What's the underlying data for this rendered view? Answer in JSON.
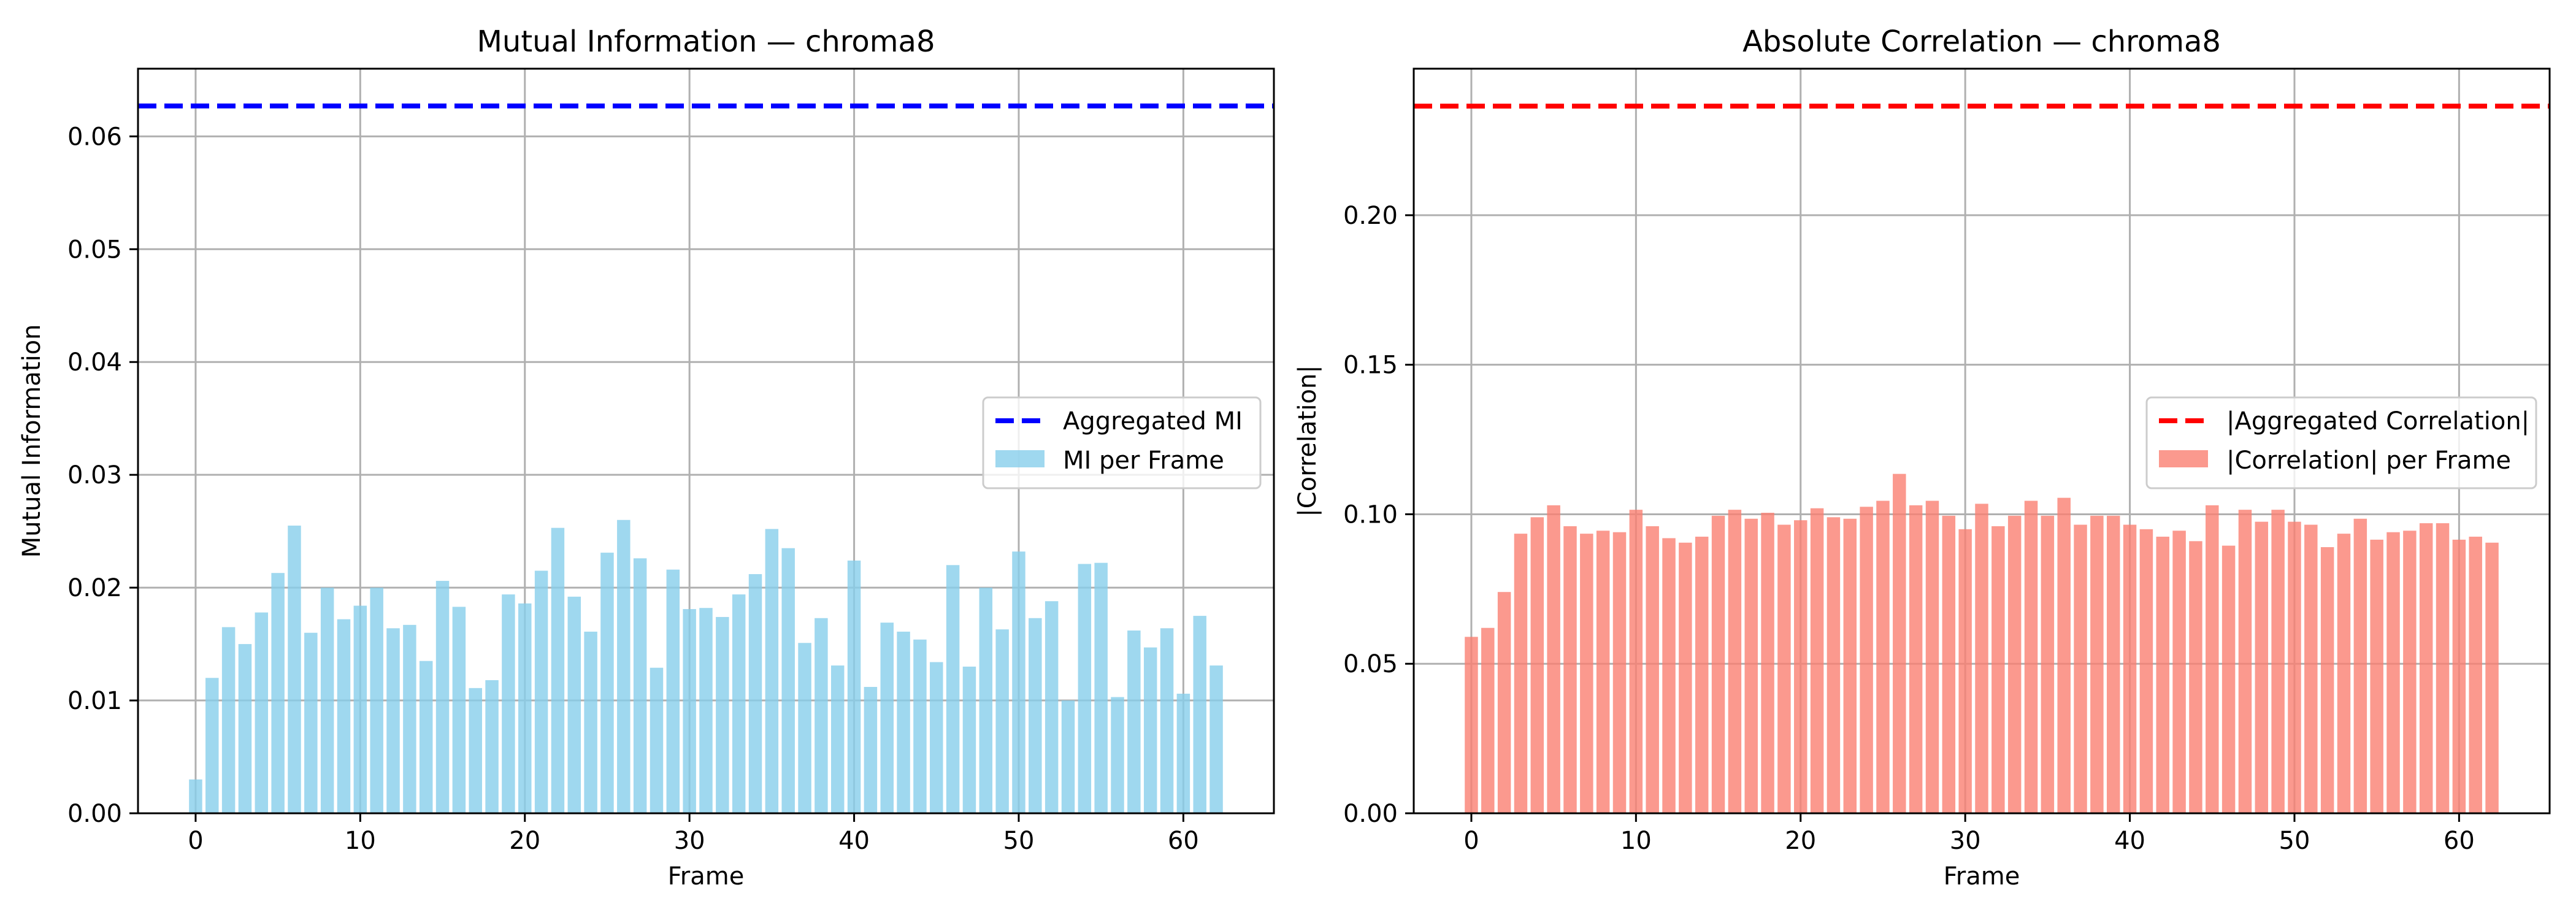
{
  "chart_data": [
    {
      "type": "bar",
      "title": "Mutual Information — chroma8",
      "xlabel": "Frame",
      "ylabel": "Mutual Information",
      "xlim": [
        -3.5,
        65.5
      ],
      "ylim": [
        0,
        0.066
      ],
      "xticks": [
        0,
        10,
        20,
        30,
        40,
        50,
        60
      ],
      "yticks": [
        0.0,
        0.01,
        0.02,
        0.03,
        0.04,
        0.05,
        0.06
      ],
      "ytick_labels": [
        "0.00",
        "0.01",
        "0.02",
        "0.03",
        "0.04",
        "0.05",
        "0.06"
      ],
      "grid": true,
      "legend_position": "center-right",
      "bar_color": "#87ceeb",
      "line_color": "#0000ff",
      "series": [
        {
          "name": "MI per Frame",
          "kind": "bar",
          "x": [
            0,
            1,
            2,
            3,
            4,
            5,
            6,
            7,
            8,
            9,
            10,
            11,
            12,
            13,
            14,
            15,
            16,
            17,
            18,
            19,
            20,
            21,
            22,
            23,
            24,
            25,
            26,
            27,
            28,
            29,
            30,
            31,
            32,
            33,
            34,
            35,
            36,
            37,
            38,
            39,
            40,
            41,
            42,
            43,
            44,
            45,
            46,
            47,
            48,
            49,
            50,
            51,
            52,
            53,
            54,
            55,
            56,
            57,
            58,
            59,
            60,
            61,
            62
          ],
          "values": [
            0.003,
            0.012,
            0.0165,
            0.015,
            0.0178,
            0.0213,
            0.0255,
            0.016,
            0.02,
            0.0172,
            0.0184,
            0.02,
            0.0164,
            0.0167,
            0.0135,
            0.0206,
            0.0183,
            0.0111,
            0.0118,
            0.0194,
            0.0186,
            0.0215,
            0.0253,
            0.0192,
            0.0161,
            0.0231,
            0.026,
            0.0226,
            0.0129,
            0.0216,
            0.0181,
            0.0182,
            0.0174,
            0.0194,
            0.0212,
            0.0252,
            0.0235,
            0.0151,
            0.0173,
            0.0131,
            0.0224,
            0.0112,
            0.0169,
            0.0161,
            0.0154,
            0.0134,
            0.022,
            0.013,
            0.02,
            0.0163,
            0.0232,
            0.0173,
            0.0188,
            0.01,
            0.0221,
            0.0222,
            0.0103,
            0.0162,
            0.0147,
            0.0164,
            0.0106,
            0.0175,
            0.0131
          ]
        },
        {
          "name": "Aggregated MI",
          "kind": "hline",
          "value": 0.0627
        }
      ]
    },
    {
      "type": "bar",
      "title": "Absolute Correlation — chroma8",
      "xlabel": "Frame",
      "ylabel": "|Correlation|",
      "xlim": [
        -3.5,
        65.5
      ],
      "ylim": [
        0,
        0.249
      ],
      "xticks": [
        0,
        10,
        20,
        30,
        40,
        50,
        60
      ],
      "yticks": [
        0.0,
        0.05,
        0.1,
        0.15,
        0.2
      ],
      "ytick_labels": [
        "0.00",
        "0.05",
        "0.10",
        "0.15",
        "0.20"
      ],
      "grid": true,
      "legend_position": "center-right",
      "bar_color": "#fa8072",
      "line_color": "#ff0000",
      "series": [
        {
          "name": "|Correlation| per Frame",
          "kind": "bar",
          "x": [
            0,
            1,
            2,
            3,
            4,
            5,
            6,
            7,
            8,
            9,
            10,
            11,
            12,
            13,
            14,
            15,
            16,
            17,
            18,
            19,
            20,
            21,
            22,
            23,
            24,
            25,
            26,
            27,
            28,
            29,
            30,
            31,
            32,
            33,
            34,
            35,
            36,
            37,
            38,
            39,
            40,
            41,
            42,
            43,
            44,
            45,
            46,
            47,
            48,
            49,
            50,
            51,
            52,
            53,
            54,
            55,
            56,
            57,
            58,
            59,
            60,
            61,
            62
          ],
          "values": [
            0.059,
            0.062,
            0.074,
            0.0935,
            0.099,
            0.103,
            0.096,
            0.0935,
            0.0945,
            0.094,
            0.1015,
            0.096,
            0.092,
            0.0905,
            0.0925,
            0.0995,
            0.1015,
            0.0985,
            0.1005,
            0.0965,
            0.098,
            0.102,
            0.099,
            0.0985,
            0.1025,
            0.1045,
            0.1135,
            0.103,
            0.1045,
            0.0995,
            0.095,
            0.1035,
            0.096,
            0.0995,
            0.1045,
            0.0995,
            0.1055,
            0.0965,
            0.0995,
            0.0995,
            0.0965,
            0.095,
            0.0925,
            0.0945,
            0.091,
            0.103,
            0.0895,
            0.1015,
            0.0975,
            0.1015,
            0.0975,
            0.0965,
            0.089,
            0.0935,
            0.0985,
            0.0915,
            0.094,
            0.0945,
            0.097,
            0.097,
            0.0915,
            0.0925,
            0.0905
          ]
        },
        {
          "name": "|Aggregated Correlation|",
          "kind": "hline",
          "value": 0.2365
        }
      ]
    }
  ]
}
